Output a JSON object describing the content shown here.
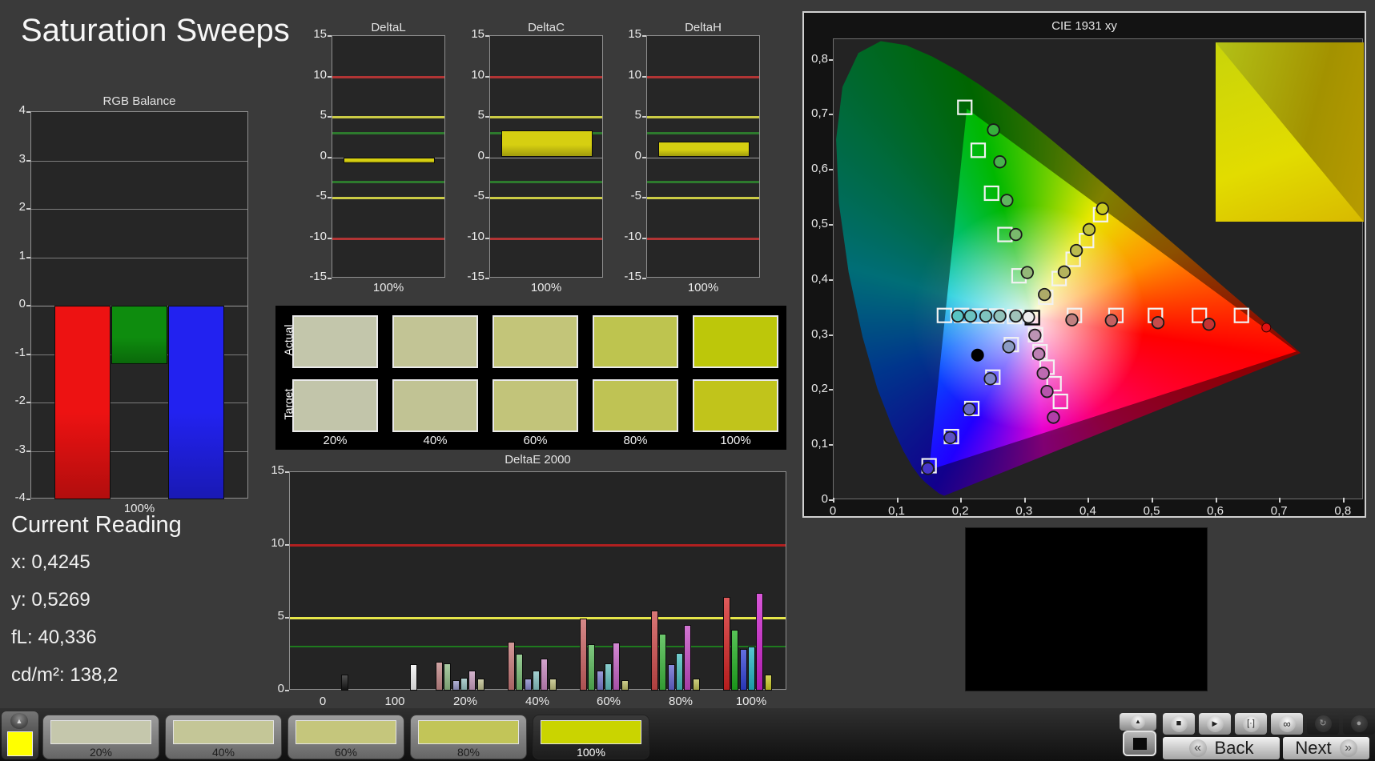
{
  "app": {
    "title": "Saturation Sweeps"
  },
  "current_reading": {
    "title": "Current Reading",
    "lines": [
      "x: 0,4245",
      "y: 0,5269",
      "fL: 40,336",
      "cd/m²: 138,2"
    ]
  },
  "swatch_table": {
    "row_labels": [
      "Actual",
      "Target"
    ],
    "col_labels": [
      "20%",
      "40%",
      "60%",
      "80%",
      "100%"
    ],
    "actual_colors": [
      "#c3c6ab",
      "#c2c495",
      "#c3c579",
      "#bec44f",
      "#bdc70a"
    ],
    "target_colors": [
      "#c2c5aa",
      "#c1c394",
      "#c2c47a",
      "#bfc354",
      "#c1c41b"
    ]
  },
  "chart_data": [
    {
      "id": "rgb_balance",
      "type": "bar",
      "title": "RGB Balance",
      "categories": [
        "100%"
      ],
      "ylim": [
        -4,
        4
      ],
      "yticks": [
        4,
        3,
        2,
        1,
        0,
        -1,
        -2,
        -3,
        -4
      ],
      "grid": true,
      "series": [
        {
          "name": "Red",
          "color": "#ed1212",
          "values": [
            -4
          ]
        },
        {
          "name": "Green",
          "color": "#0e8c0e",
          "values": [
            -1.2
          ]
        },
        {
          "name": "Blue",
          "color": "#2222f0",
          "values": [
            -4
          ]
        }
      ]
    },
    {
      "id": "delta_l",
      "type": "bar",
      "title": "DeltaL",
      "categories": [
        "100%"
      ],
      "values": [
        -0.7
      ],
      "bar_color": "#d6cf11",
      "ylim": [
        -15,
        15
      ],
      "yticks": [
        15,
        10,
        5,
        0,
        -5,
        -10,
        -15
      ],
      "ref_lines": [
        {
          "y": 10,
          "color": "#b13434"
        },
        {
          "y": 5,
          "color": "#cbcb45"
        },
        {
          "y": 3,
          "color": "#2d7a2d"
        },
        {
          "y": -3,
          "color": "#2d7a2d"
        },
        {
          "y": -5,
          "color": "#cbcb45"
        },
        {
          "y": -10,
          "color": "#b13434"
        }
      ]
    },
    {
      "id": "delta_c",
      "type": "bar",
      "title": "DeltaC",
      "categories": [
        "100%"
      ],
      "values": [
        3.3
      ],
      "bar_color": "#d6cf11",
      "ylim": [
        -15,
        15
      ],
      "yticks": [
        15,
        10,
        5,
        0,
        -5,
        -10,
        -15
      ],
      "ref_lines": [
        {
          "y": 10,
          "color": "#b13434"
        },
        {
          "y": 5,
          "color": "#cbcb45"
        },
        {
          "y": 3,
          "color": "#2d7a2d"
        },
        {
          "y": -3,
          "color": "#2d7a2d"
        },
        {
          "y": -5,
          "color": "#cbcb45"
        },
        {
          "y": -10,
          "color": "#b13434"
        }
      ]
    },
    {
      "id": "delta_h",
      "type": "bar",
      "title": "DeltaH",
      "categories": [
        "100%"
      ],
      "values": [
        1.9
      ],
      "bar_color": "#d6cf11",
      "ylim": [
        -15,
        15
      ],
      "yticks": [
        15,
        10,
        5,
        0,
        -5,
        -10,
        -15
      ],
      "ref_lines": [
        {
          "y": 10,
          "color": "#b13434"
        },
        {
          "y": 5,
          "color": "#cbcb45"
        },
        {
          "y": 3,
          "color": "#2d7a2d"
        },
        {
          "y": -3,
          "color": "#2d7a2d"
        },
        {
          "y": -5,
          "color": "#cbcb45"
        },
        {
          "y": -10,
          "color": "#b13434"
        }
      ]
    },
    {
      "id": "delta_e_2000",
      "type": "grouped-bar",
      "title": "DeltaE 2000",
      "ylim": [
        0,
        15
      ],
      "yticks": [
        15,
        10,
        5,
        0
      ],
      "ref_lines": [
        {
          "y": 10,
          "color": "#b12020"
        },
        {
          "y": 5,
          "color": "#e6e64a"
        },
        {
          "y": 3,
          "color": "#1e7a1e"
        }
      ],
      "groups": [
        {
          "label": "0",
          "bars": [
            {
              "color": "#161616",
              "value": 1.1
            }
          ]
        },
        {
          "label": "100",
          "bars": [
            {
              "color": "#f2f2f2",
              "value": 1.8
            }
          ]
        },
        {
          "label": "20%",
          "bars": [
            {
              "color": "#c08585",
              "value": 2.0
            },
            {
              "color": "#8fba85",
              "value": 1.85
            },
            {
              "color": "#9797c5",
              "value": 0.7
            },
            {
              "color": "#97bfbf",
              "value": 0.9
            },
            {
              "color": "#c59bbc",
              "value": 1.35
            },
            {
              "color": "#bdbd8d",
              "value": 0.85
            }
          ]
        },
        {
          "label": "40%",
          "bars": [
            {
              "color": "#c47575",
              "value": 3.35
            },
            {
              "color": "#77bb72",
              "value": 2.55
            },
            {
              "color": "#8585c8",
              "value": 0.8
            },
            {
              "color": "#85c0c0",
              "value": 1.4
            },
            {
              "color": "#c585bd",
              "value": 2.2
            },
            {
              "color": "#bcbc7c",
              "value": 0.8
            }
          ]
        },
        {
          "label": "60%",
          "bars": [
            {
              "color": "#c96060",
              "value": 4.95
            },
            {
              "color": "#55b655",
              "value": 3.2
            },
            {
              "color": "#7777ca",
              "value": 1.35
            },
            {
              "color": "#60bcbc",
              "value": 1.85
            },
            {
              "color": "#c35fc3",
              "value": 3.3
            },
            {
              "color": "#bcbc66",
              "value": 0.7
            }
          ]
        },
        {
          "label": "80%",
          "bars": [
            {
              "color": "#cd4949",
              "value": 5.5
            },
            {
              "color": "#3cb53c",
              "value": 3.9
            },
            {
              "color": "#6363cf",
              "value": 1.8
            },
            {
              "color": "#44bcbc",
              "value": 2.6
            },
            {
              "color": "#c247c2",
              "value": 4.5
            },
            {
              "color": "#bdbd55",
              "value": 0.85
            }
          ]
        },
        {
          "label": "100%",
          "bars": [
            {
              "color": "#d42222",
              "value": 6.45
            },
            {
              "color": "#1fae1f",
              "value": 4.2
            },
            {
              "color": "#2f3fd4",
              "value": 2.85
            },
            {
              "color": "#20b3c3",
              "value": 3.0
            },
            {
              "color": "#cb1fcb",
              "value": 6.7
            },
            {
              "color": "#c9c922",
              "value": 1.1
            }
          ]
        }
      ]
    },
    {
      "id": "cie_1931",
      "type": "scatter",
      "title": "CIE 1931 xy",
      "xticks": [
        {
          "v": 0,
          "label": "0"
        },
        {
          "v": 0.1,
          "label": "0,1"
        },
        {
          "v": 0.2,
          "label": "0,2"
        },
        {
          "v": 0.3,
          "label": "0,3"
        },
        {
          "v": 0.4,
          "label": "0,4"
        },
        {
          "v": 0.5,
          "label": "0,5"
        },
        {
          "v": 0.6,
          "label": "0,6"
        },
        {
          "v": 0.7,
          "label": "0,7"
        },
        {
          "v": 0.8,
          "label": "0,8"
        }
      ],
      "yticks": [
        {
          "v": 0,
          "label": "0"
        },
        {
          "v": 0.1,
          "label": "0,1"
        },
        {
          "v": 0.2,
          "label": "0,2"
        },
        {
          "v": 0.3,
          "label": "0,3"
        },
        {
          "v": 0.4,
          "label": "0,4"
        },
        {
          "v": 0.5,
          "label": "0,5"
        },
        {
          "v": 0.6,
          "label": "0,6"
        },
        {
          "v": 0.7,
          "label": "0,7"
        },
        {
          "v": 0.8,
          "label": "0,8"
        }
      ],
      "white_target": [
        0.313,
        0.33
      ],
      "white_measured": [
        0.307,
        0.331,
        "#ececec"
      ],
      "black_point": [
        0.227,
        0.262
      ],
      "red_100_measured": [
        0.68,
        0.312,
        "#e01212"
      ],
      "targets": [
        [
          0.379,
          0.334
        ],
        [
          0.444,
          0.334
        ],
        [
          0.506,
          0.334
        ],
        [
          0.575,
          0.334
        ],
        [
          0.641,
          0.334
        ],
        [
          0.292,
          0.406
        ],
        [
          0.27,
          0.481
        ],
        [
          0.249,
          0.556
        ],
        [
          0.228,
          0.634
        ],
        [
          0.207,
          0.712
        ],
        [
          0.28,
          0.281
        ],
        [
          0.251,
          0.222
        ],
        [
          0.218,
          0.165
        ],
        [
          0.186,
          0.114
        ],
        [
          0.151,
          0.061
        ],
        [
          0.285,
          0.332
        ],
        [
          0.257,
          0.333
        ],
        [
          0.23,
          0.333
        ],
        [
          0.202,
          0.334
        ],
        [
          0.175,
          0.334
        ],
        [
          0.318,
          0.299
        ],
        [
          0.325,
          0.268
        ],
        [
          0.336,
          0.24
        ],
        [
          0.347,
          0.21
        ],
        [
          0.357,
          0.178
        ],
        [
          0.334,
          0.367
        ],
        [
          0.355,
          0.401
        ],
        [
          0.377,
          0.436
        ],
        [
          0.398,
          0.47
        ],
        [
          0.42,
          0.517
        ]
      ],
      "measured": [
        [
          0.375,
          0.326,
          "#c08080"
        ],
        [
          0.437,
          0.325,
          "#c46060"
        ],
        [
          0.51,
          0.321,
          "#c74b4b"
        ],
        [
          0.59,
          0.318,
          "#c53333"
        ],
        [
          0.305,
          0.412,
          "#94b878"
        ],
        [
          0.287,
          0.481,
          "#79b96c"
        ],
        [
          0.273,
          0.543,
          "#5fb55e"
        ],
        [
          0.262,
          0.613,
          "#49b24d"
        ],
        [
          0.252,
          0.671,
          "#37af3c"
        ],
        [
          0.276,
          0.277,
          "#8c9cc4"
        ],
        [
          0.247,
          0.219,
          "#7e85c8"
        ],
        [
          0.214,
          0.164,
          "#6a6ac6"
        ],
        [
          0.184,
          0.112,
          "#5b50c6"
        ],
        [
          0.149,
          0.056,
          "#4836cb"
        ],
        [
          0.287,
          0.333,
          "#a0c3b9"
        ],
        [
          0.262,
          0.333,
          "#90c3bc"
        ],
        [
          0.24,
          0.333,
          "#7ec3be"
        ],
        [
          0.216,
          0.333,
          "#6bc3c1"
        ],
        [
          0.196,
          0.333,
          "#58c3c3"
        ],
        [
          0.317,
          0.298,
          "#bd94b4"
        ],
        [
          0.323,
          0.264,
          "#bd80b4"
        ],
        [
          0.33,
          0.229,
          "#bd6ab1"
        ],
        [
          0.336,
          0.196,
          "#b754ac"
        ],
        [
          0.346,
          0.149,
          "#b13ea9"
        ],
        [
          0.332,
          0.372,
          "#aeab68"
        ],
        [
          0.363,
          0.413,
          "#b4b35c"
        ],
        [
          0.382,
          0.452,
          "#bbbb4e"
        ],
        [
          0.402,
          0.49,
          "#c2c33b"
        ],
        [
          0.423,
          0.528,
          "#caca1f"
        ]
      ],
      "inset": {
        "circle": [
          0.46,
          0.33
        ],
        "square": [
          0.52,
          0.5
        ]
      }
    }
  ],
  "bottom_bar": {
    "pattern_color": "#ffff00",
    "swatches": [
      {
        "label": "20%",
        "color": "#c5c7ac",
        "active": false
      },
      {
        "label": "40%",
        "color": "#c4c697",
        "active": false
      },
      {
        "label": "60%",
        "color": "#c5c67c",
        "active": false
      },
      {
        "label": "80%",
        "color": "#c2c558",
        "active": false
      },
      {
        "label": "100%",
        "color": "#cad400",
        "active": true
      }
    ],
    "transport": [
      {
        "name": "stop",
        "glyph": "■"
      },
      {
        "name": "play",
        "glyph": "▶"
      },
      {
        "name": "frame-marker",
        "glyph": "[·]"
      },
      {
        "name": "loop",
        "glyph": "∞"
      },
      {
        "name": "refresh",
        "glyph": "↻"
      },
      {
        "name": "record",
        "glyph": "●"
      }
    ],
    "up_glyph": "▲",
    "back_label": "Back",
    "next_label": "Next",
    "back_chevron": "«",
    "next_chevron": "»"
  }
}
